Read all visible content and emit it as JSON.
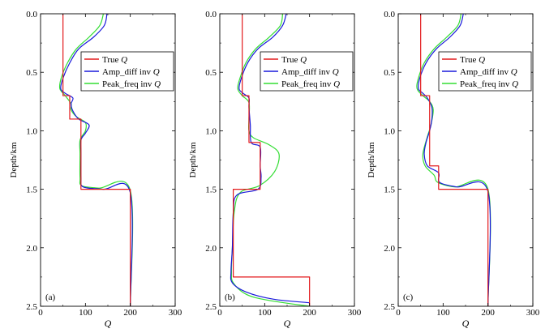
{
  "chart_data": [
    {
      "type": "line",
      "panel_label": "(a)",
      "xlabel": "Q",
      "ylabel": "Depth/km",
      "xlim": [
        0,
        300
      ],
      "ylim": [
        2.5,
        0.0
      ],
      "xticks": [
        "0",
        "100",
        "200",
        "300"
      ],
      "yticks": [
        "0.0",
        "0.5",
        "1.0",
        "1.5",
        "2.0",
        "2.5"
      ],
      "legend": {
        "position": "upper-right",
        "entries": [
          "True Q",
          "Amp_diff inv Q",
          "Peak_freq inv Q"
        ]
      },
      "series": [
        {
          "name": "True Q",
          "color": "#e31a1c",
          "style": "step",
          "points": [
            [
              50,
              0.0
            ],
            [
              50,
              0.7
            ],
            [
              65,
              0.7
            ],
            [
              65,
              0.9
            ],
            [
              90,
              0.9
            ],
            [
              90,
              1.5
            ],
            [
              200,
              1.5
            ],
            [
              200,
              2.5
            ]
          ]
        },
        {
          "name": "Amp_diff inv Q",
          "color": "#1a1adb",
          "style": "curve",
          "points": [
            [
              148,
              0.0
            ],
            [
              142,
              0.1
            ],
            [
              118,
              0.2
            ],
            [
              85,
              0.3
            ],
            [
              65,
              0.42
            ],
            [
              50,
              0.55
            ],
            [
              45,
              0.64
            ],
            [
              55,
              0.68
            ],
            [
              72,
              0.72
            ],
            [
              68,
              0.77
            ],
            [
              72,
              0.83
            ],
            [
              85,
              0.9
            ],
            [
              108,
              0.95
            ],
            [
              100,
              1.02
            ],
            [
              90,
              1.08
            ],
            [
              90,
              1.2
            ],
            [
              90,
              1.4
            ],
            [
              95,
              1.48
            ],
            [
              140,
              1.5
            ],
            [
              200,
              1.53
            ],
            [
              200,
              2.5
            ]
          ]
        },
        {
          "name": "Peak_freq inv Q",
          "color": "#33dd33",
          "style": "curve",
          "points": [
            [
              140,
              0.0
            ],
            [
              132,
              0.1
            ],
            [
              108,
              0.2
            ],
            [
              80,
              0.3
            ],
            [
              60,
              0.42
            ],
            [
              46,
              0.55
            ],
            [
              43,
              0.64
            ],
            [
              55,
              0.7
            ],
            [
              68,
              0.77
            ],
            [
              68,
              0.82
            ],
            [
              80,
              0.88
            ],
            [
              100,
              0.93
            ],
            [
              100,
              1.0
            ],
            [
              88,
              1.08
            ],
            [
              88,
              1.2
            ],
            [
              88,
              1.4
            ],
            [
              92,
              1.47
            ],
            [
              130,
              1.49
            ],
            [
              200,
              1.51
            ],
            [
              200,
              2.5
            ]
          ]
        }
      ]
    },
    {
      "type": "line",
      "panel_label": "(b)",
      "xlabel": "Q",
      "ylabel": "Depth/km",
      "xlim": [
        0,
        300
      ],
      "ylim": [
        2.5,
        0.0
      ],
      "xticks": [
        "0",
        "100",
        "200",
        "300"
      ],
      "yticks": [
        "0.0",
        "0.5",
        "1.0",
        "1.5",
        "2.0",
        "2.5"
      ],
      "legend": {
        "position": "upper-right",
        "entries": [
          "True Q",
          "Amp_diff inv Q",
          "Peak_freq inv Q"
        ]
      },
      "series": [
        {
          "name": "True Q",
          "color": "#e31a1c",
          "style": "step",
          "points": [
            [
              50,
              0.0
            ],
            [
              50,
              0.7
            ],
            [
              65,
              0.7
            ],
            [
              65,
              1.1
            ],
            [
              90,
              1.1
            ],
            [
              90,
              1.5
            ],
            [
              30,
              1.5
            ],
            [
              30,
              2.25
            ],
            [
              200,
              2.25
            ],
            [
              200,
              2.5
            ]
          ]
        },
        {
          "name": "Amp_diff inv Q",
          "color": "#1a1adb",
          "style": "curve",
          "points": [
            [
              148,
              0.0
            ],
            [
              140,
              0.1
            ],
            [
              118,
              0.2
            ],
            [
              85,
              0.3
            ],
            [
              62,
              0.42
            ],
            [
              48,
              0.55
            ],
            [
              43,
              0.64
            ],
            [
              52,
              0.68
            ],
            [
              65,
              0.72
            ],
            [
              65,
              0.8
            ],
            [
              68,
              0.95
            ],
            [
              70,
              1.1
            ],
            [
              90,
              1.14
            ],
            [
              90,
              1.3
            ],
            [
              92,
              1.4
            ],
            [
              85,
              1.5
            ],
            [
              38,
              1.55
            ],
            [
              30,
              1.7
            ],
            [
              28,
              2.0
            ],
            [
              25,
              2.2
            ],
            [
              28,
              2.3
            ],
            [
              60,
              2.38
            ],
            [
              120,
              2.44
            ],
            [
              200,
              2.47
            ]
          ]
        },
        {
          "name": "Peak_freq inv Q",
          "color": "#33dd33",
          "style": "curve",
          "points": [
            [
              140,
              0.0
            ],
            [
              135,
              0.1
            ],
            [
              110,
              0.2
            ],
            [
              80,
              0.3
            ],
            [
              58,
              0.42
            ],
            [
              45,
              0.55
            ],
            [
              40,
              0.64
            ],
            [
              50,
              0.7
            ],
            [
              65,
              0.76
            ],
            [
              65,
              0.9
            ],
            [
              65,
              1.0
            ],
            [
              75,
              1.06
            ],
            [
              110,
              1.12
            ],
            [
              132,
              1.2
            ],
            [
              122,
              1.35
            ],
            [
              88,
              1.47
            ],
            [
              45,
              1.53
            ],
            [
              32,
              1.7
            ],
            [
              28,
              2.0
            ],
            [
              26,
              2.2
            ],
            [
              30,
              2.3
            ],
            [
              60,
              2.4
            ],
            [
              110,
              2.45
            ],
            [
              200,
              2.5
            ]
          ]
        }
      ]
    },
    {
      "type": "line",
      "panel_label": "(c)",
      "xlabel": "Q",
      "ylabel": "Depth/km",
      "xlim": [
        0,
        300
      ],
      "ylim": [
        2.5,
        0.0
      ],
      "xticks": [
        "0",
        "100",
        "200",
        "300"
      ],
      "yticks": [
        "0.0",
        "0.5",
        "1.0",
        "1.5",
        "2.0",
        "2.5"
      ],
      "legend": {
        "position": "upper-right",
        "entries": [
          "True Q",
          "Amp_diff inv Q",
          "Peak_freq inv Q"
        ]
      },
      "series": [
        {
          "name": "True Q",
          "color": "#e31a1c",
          "style": "step",
          "points": [
            [
              50,
              0.0
            ],
            [
              50,
              0.7
            ],
            [
              70,
              0.7
            ],
            [
              70,
              1.3
            ],
            [
              90,
              1.3
            ],
            [
              90,
              1.5
            ],
            [
              200,
              1.5
            ],
            [
              200,
              2.5
            ]
          ]
        },
        {
          "name": "Amp_diff inv Q",
          "color": "#1a1adb",
          "style": "curve",
          "points": [
            [
              145,
              0.0
            ],
            [
              138,
              0.1
            ],
            [
              115,
              0.2
            ],
            [
              85,
              0.3
            ],
            [
              62,
              0.42
            ],
            [
              48,
              0.55
            ],
            [
              45,
              0.64
            ],
            [
              55,
              0.68
            ],
            [
              65,
              0.72
            ],
            [
              75,
              0.8
            ],
            [
              75,
              0.9
            ],
            [
              70,
              1.0
            ],
            [
              62,
              1.1
            ],
            [
              58,
              1.2
            ],
            [
              65,
              1.3
            ],
            [
              90,
              1.36
            ],
            [
              92,
              1.44
            ],
            [
              130,
              1.48
            ],
            [
              200,
              1.52
            ],
            [
              200,
              2.5
            ]
          ]
        },
        {
          "name": "Peak_freq inv Q",
          "color": "#33dd33",
          "style": "curve",
          "points": [
            [
              140,
              0.0
            ],
            [
              133,
              0.1
            ],
            [
              108,
              0.2
            ],
            [
              80,
              0.3
            ],
            [
              58,
              0.42
            ],
            [
              45,
              0.55
            ],
            [
              42,
              0.64
            ],
            [
              55,
              0.7
            ],
            [
              70,
              0.75
            ],
            [
              78,
              0.82
            ],
            [
              73,
              0.95
            ],
            [
              65,
              1.05
            ],
            [
              55,
              1.2
            ],
            [
              60,
              1.3
            ],
            [
              80,
              1.38
            ],
            [
              88,
              1.44
            ],
            [
              125,
              1.48
            ],
            [
              200,
              1.5
            ],
            [
              200,
              2.5
            ]
          ]
        }
      ]
    }
  ]
}
